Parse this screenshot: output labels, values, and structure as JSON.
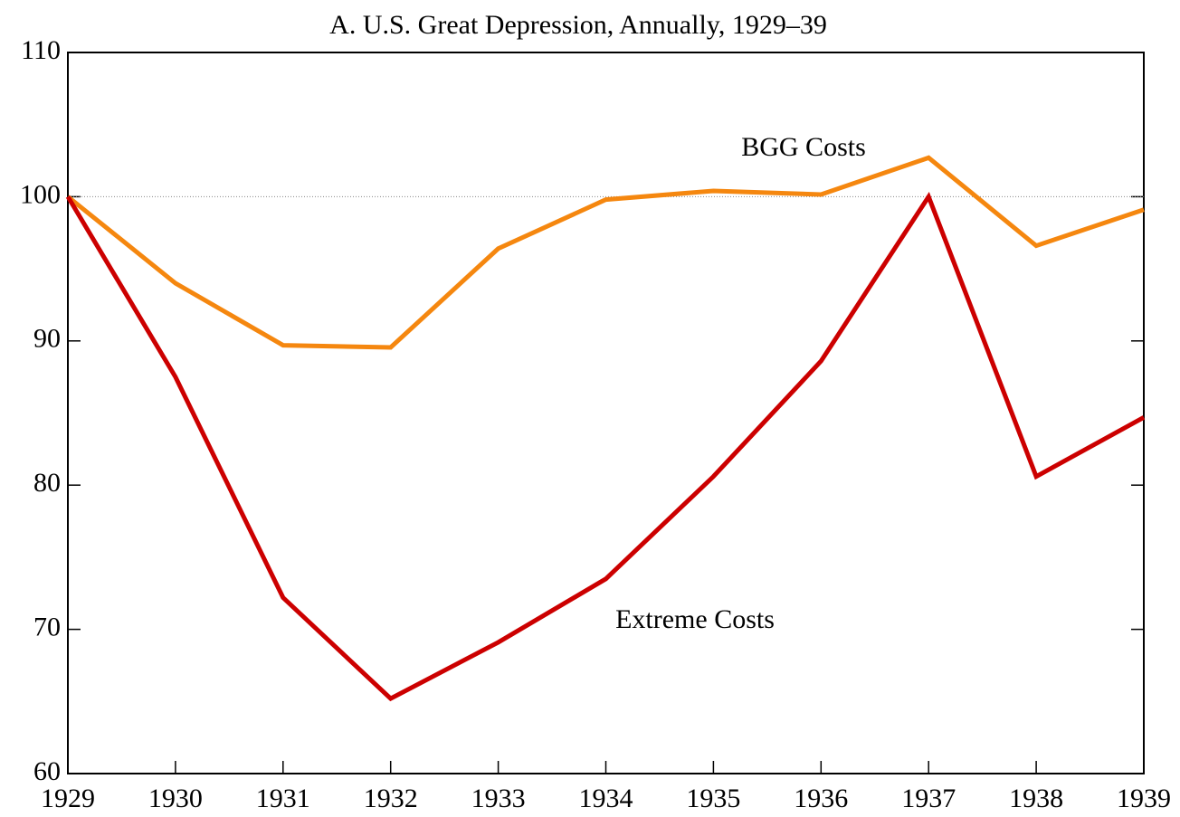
{
  "chart_data": {
    "type": "line",
    "title": "A. U.S. Great Depression, Annually, 1929–39",
    "x": [
      1929,
      1930,
      1931,
      1932,
      1933,
      1934,
      1935,
      1936,
      1937,
      1938,
      1939
    ],
    "series": [
      {
        "name": "BGG Costs",
        "color": "#f5870f",
        "values": [
          100,
          94.0,
          89.7,
          89.55,
          96.4,
          99.8,
          100.4,
          100.15,
          102.7,
          96.6,
          99.1
        ]
      },
      {
        "name": "Extreme Costs",
        "color": "#cc0000",
        "values": [
          100,
          87.5,
          72.2,
          65.2,
          69.1,
          73.5,
          80.6,
          88.6,
          100,
          80.6,
          84.7
        ]
      }
    ],
    "xlim": [
      1929,
      1939
    ],
    "xticks": [
      1929,
      1930,
      1931,
      1932,
      1933,
      1934,
      1935,
      1936,
      1937,
      1938,
      1939
    ],
    "ylim": [
      60,
      110
    ],
    "yticks": [
      60,
      70,
      80,
      90,
      100,
      110
    ],
    "reference_line": 100
  }
}
